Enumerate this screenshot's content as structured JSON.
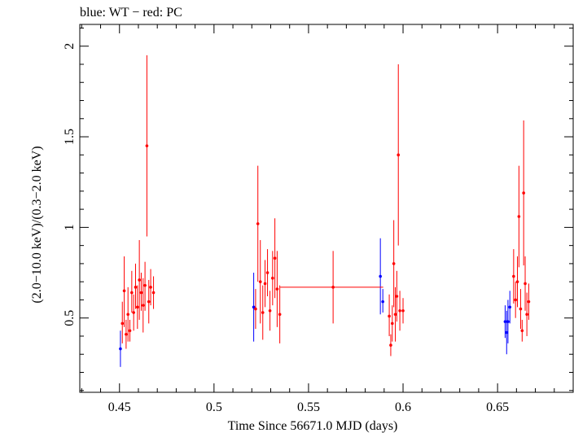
{
  "chart_data": {
    "type": "scatter",
    "title": "blue: WT − red: PC",
    "xlabel": "Time Since 56671.0 MJD (days)",
    "ylabel": "(2.0−10.0 keV)/(0.3−2.0 keV)",
    "xlim": [
      0.429,
      0.69
    ],
    "ylim": [
      0.09,
      2.12
    ],
    "xticks": [
      0.45,
      0.5,
      0.55,
      0.6,
      0.65
    ],
    "xtick_labels": [
      "0.45",
      "0.5",
      "0.55",
      "0.6",
      "0.65"
    ],
    "yticks": [
      0.5,
      1,
      1.5,
      2
    ],
    "ytick_labels": [
      "0.5",
      "1",
      "1.5",
      "2"
    ],
    "grid": false,
    "colors": {
      "WT": "#0000ff",
      "PC": "#ff0000"
    },
    "series": [
      {
        "name": "WT",
        "color": "#0000ff",
        "points": [
          {
            "x": 0.4505,
            "y": 0.33,
            "ylo": 0.23,
            "yhi": 0.43
          },
          {
            "x": 0.521,
            "y": 0.56,
            "ylo": 0.37,
            "yhi": 0.75
          },
          {
            "x": 0.588,
            "y": 0.73,
            "ylo": 0.52,
            "yhi": 0.94
          },
          {
            "x": 0.5893,
            "y": 0.59,
            "ylo": 0.53,
            "yhi": 0.66
          },
          {
            "x": 0.654,
            "y": 0.48,
            "ylo": 0.39,
            "yhi": 0.57
          },
          {
            "x": 0.6548,
            "y": 0.42,
            "ylo": 0.3,
            "yhi": 0.54
          },
          {
            "x": 0.6555,
            "y": 0.48,
            "ylo": 0.36,
            "yhi": 0.6
          },
          {
            "x": 0.6565,
            "y": 0.56,
            "ylo": 0.47,
            "yhi": 0.65
          }
        ]
      },
      {
        "name": "PC",
        "color": "#ff0000",
        "points": [
          {
            "x": 0.4515,
            "y": 0.47,
            "ylo": 0.36,
            "yhi": 0.59
          },
          {
            "x": 0.4525,
            "y": 0.65,
            "ylo": 0.45,
            "yhi": 0.84
          },
          {
            "x": 0.4535,
            "y": 0.41,
            "ylo": 0.33,
            "yhi": 0.49
          },
          {
            "x": 0.4545,
            "y": 0.52,
            "ylo": 0.37,
            "yhi": 0.67
          },
          {
            "x": 0.4555,
            "y": 0.43,
            "ylo": 0.37,
            "yhi": 0.49
          },
          {
            "x": 0.4565,
            "y": 0.64,
            "ylo": 0.53,
            "yhi": 0.76
          },
          {
            "x": 0.4575,
            "y": 0.53,
            "ylo": 0.43,
            "yhi": 0.63
          },
          {
            "x": 0.4585,
            "y": 0.67,
            "ylo": 0.55,
            "yhi": 0.8
          },
          {
            "x": 0.4595,
            "y": 0.56,
            "ylo": 0.44,
            "yhi": 0.68
          },
          {
            "x": 0.4605,
            "y": 0.71,
            "ylo": 0.49,
            "yhi": 0.93
          },
          {
            "x": 0.4615,
            "y": 0.64,
            "ylo": 0.54,
            "yhi": 0.75
          },
          {
            "x": 0.4625,
            "y": 0.57,
            "ylo": 0.42,
            "yhi": 0.72
          },
          {
            "x": 0.4635,
            "y": 0.68,
            "ylo": 0.54,
            "yhi": 0.81
          },
          {
            "x": 0.4645,
            "y": 1.45,
            "ylo": 0.95,
            "yhi": 1.95
          },
          {
            "x": 0.4655,
            "y": 0.59,
            "ylo": 0.47,
            "yhi": 0.71
          },
          {
            "x": 0.4665,
            "y": 0.67,
            "ylo": 0.57,
            "yhi": 0.77
          },
          {
            "x": 0.468,
            "y": 0.64,
            "ylo": 0.55,
            "yhi": 0.73
          },
          {
            "x": 0.522,
            "y": 0.55,
            "ylo": 0.44,
            "yhi": 0.66
          },
          {
            "x": 0.5232,
            "y": 1.02,
            "ylo": 0.7,
            "yhi": 1.34
          },
          {
            "x": 0.5245,
            "y": 0.7,
            "ylo": 0.47,
            "yhi": 0.93
          },
          {
            "x": 0.5258,
            "y": 0.53,
            "ylo": 0.38,
            "yhi": 0.68
          },
          {
            "x": 0.527,
            "y": 0.69,
            "ylo": 0.56,
            "yhi": 0.82
          },
          {
            "x": 0.5283,
            "y": 0.75,
            "ylo": 0.62,
            "yhi": 0.88
          },
          {
            "x": 0.5296,
            "y": 0.54,
            "ylo": 0.43,
            "yhi": 0.65
          },
          {
            "x": 0.531,
            "y": 0.72,
            "ylo": 0.57,
            "yhi": 0.87
          },
          {
            "x": 0.5322,
            "y": 0.83,
            "ylo": 0.61,
            "yhi": 1.05
          },
          {
            "x": 0.5334,
            "y": 0.66,
            "ylo": 0.45,
            "yhi": 0.87
          },
          {
            "x": 0.5348,
            "y": 0.52,
            "ylo": 0.36,
            "yhi": 0.68
          },
          {
            "x": 0.563,
            "y": 0.67,
            "ylo": 0.47,
            "yhi": 0.87,
            "xlo": 0.535,
            "xhi": 0.5895
          },
          {
            "x": 0.5927,
            "y": 0.51,
            "ylo": 0.4,
            "yhi": 0.63
          },
          {
            "x": 0.5935,
            "y": 0.35,
            "ylo": 0.29,
            "yhi": 0.41
          },
          {
            "x": 0.5943,
            "y": 0.47,
            "ylo": 0.37,
            "yhi": 0.57
          },
          {
            "x": 0.5951,
            "y": 0.8,
            "ylo": 0.56,
            "yhi": 1.04
          },
          {
            "x": 0.5959,
            "y": 0.52,
            "ylo": 0.37,
            "yhi": 0.67
          },
          {
            "x": 0.5967,
            "y": 0.62,
            "ylo": 0.48,
            "yhi": 0.76
          },
          {
            "x": 0.5975,
            "y": 1.4,
            "ylo": 0.9,
            "yhi": 1.9
          },
          {
            "x": 0.5983,
            "y": 0.54,
            "ylo": 0.43,
            "yhi": 0.65
          },
          {
            "x": 0.6,
            "y": 0.54,
            "ylo": 0.47,
            "yhi": 0.61
          },
          {
            "x": 0.6585,
            "y": 0.73,
            "ylo": 0.58,
            "yhi": 0.88
          },
          {
            "x": 0.6595,
            "y": 0.6,
            "ylo": 0.5,
            "yhi": 0.7
          },
          {
            "x": 0.6605,
            "y": 0.7,
            "ylo": 0.56,
            "yhi": 0.84
          },
          {
            "x": 0.6613,
            "y": 1.06,
            "ylo": 0.78,
            "yhi": 1.34
          },
          {
            "x": 0.6622,
            "y": 0.55,
            "ylo": 0.44,
            "yhi": 0.66
          },
          {
            "x": 0.663,
            "y": 0.43,
            "ylo": 0.37,
            "yhi": 0.49
          },
          {
            "x": 0.6638,
            "y": 1.19,
            "ylo": 0.79,
            "yhi": 1.59
          },
          {
            "x": 0.6646,
            "y": 0.69,
            "ylo": 0.54,
            "yhi": 0.84
          },
          {
            "x": 0.6655,
            "y": 0.52,
            "ylo": 0.4,
            "yhi": 0.64
          },
          {
            "x": 0.6665,
            "y": 0.59,
            "ylo": 0.49,
            "yhi": 0.69
          }
        ]
      }
    ]
  }
}
